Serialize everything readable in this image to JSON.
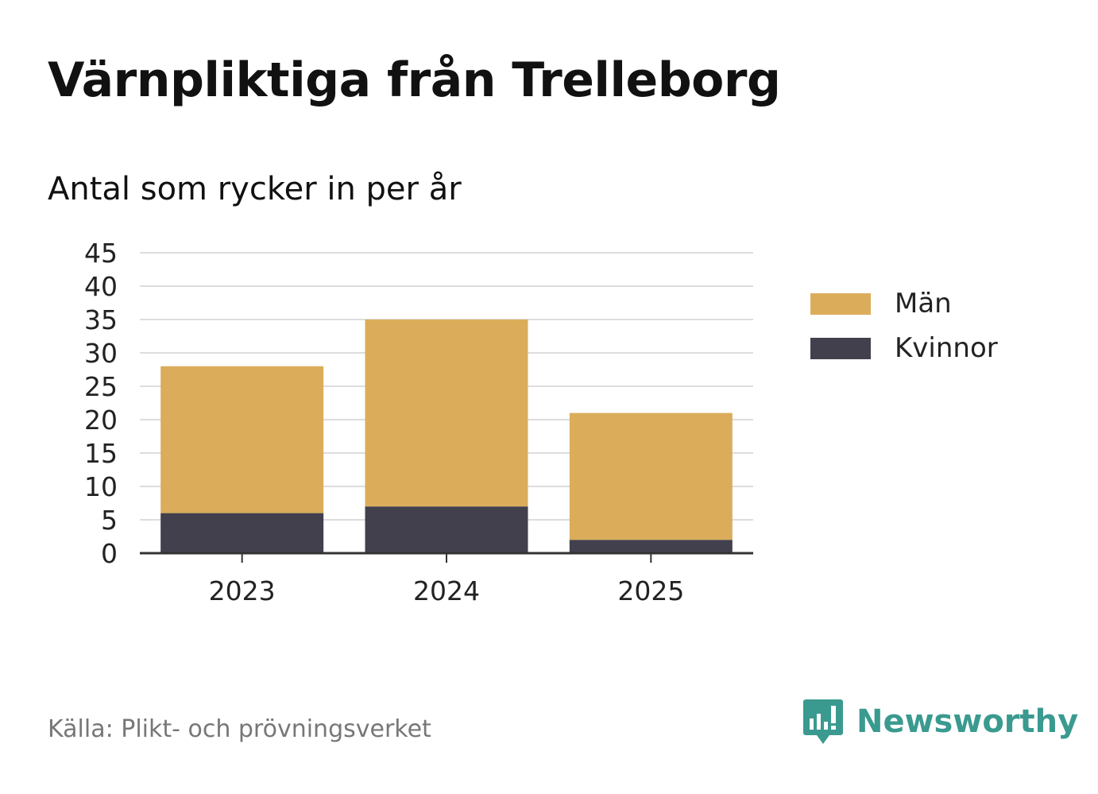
{
  "title": "Värnpliktiga från Trelleborg",
  "subtitle": "Antal som rycker in per år",
  "source": "Källa: Plikt- och prövningsverket",
  "brand": "Newsworthy",
  "colors": {
    "man": "#dbad5b",
    "kvinnor": "#42404d",
    "grid": "#dddddd",
    "axis": "#333333",
    "brand": "#3a9a8f"
  },
  "chart_data": {
    "type": "bar",
    "stacked": true,
    "categories": [
      "2023",
      "2024",
      "2025"
    ],
    "series": [
      {
        "name": "Kvinnor",
        "values": [
          6,
          7,
          2
        ]
      },
      {
        "name": "Män",
        "values": [
          22,
          28,
          19
        ]
      }
    ],
    "ylim": [
      0,
      45
    ],
    "yticks": [
      "0",
      "5",
      "10",
      "15",
      "20",
      "25",
      "30",
      "35",
      "40",
      "45"
    ],
    "grid": true,
    "legend": "right"
  },
  "legend": [
    {
      "label": "Män",
      "color": "#dbad5b"
    },
    {
      "label": "Kvinnor",
      "color": "#42404d"
    }
  ]
}
